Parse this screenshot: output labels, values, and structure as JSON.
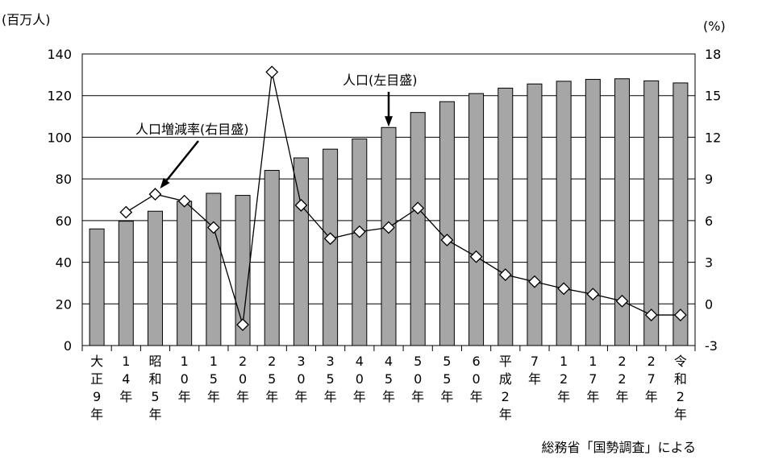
{
  "chart_data": {
    "type": "bar",
    "categories": [
      "大正9年",
      "14年",
      "昭和5年",
      "10年",
      "15年",
      "20年",
      "25年",
      "30年",
      "35年",
      "40年",
      "45年",
      "50年",
      "55年",
      "60年",
      "平成2年",
      "7年",
      "12年",
      "17年",
      "22年",
      "27年",
      "令和2年"
    ],
    "series": [
      {
        "name": "人口(左目盛)",
        "kind": "bar",
        "axis": "left",
        "color": "#a6a6a6",
        "values": [
          56.0,
          59.7,
          64.5,
          69.3,
          73.1,
          72.1,
          84.1,
          90.1,
          94.3,
          99.2,
          104.7,
          111.9,
          117.1,
          121.0,
          123.6,
          125.6,
          126.9,
          127.8,
          128.1,
          127.1,
          126.1
        ]
      },
      {
        "name": "人口増減率(右目盛)",
        "kind": "line",
        "axis": "right",
        "color": "#000000",
        "values": [
          null,
          6.6,
          7.9,
          7.4,
          5.5,
          -1.5,
          16.7,
          7.1,
          4.7,
          5.2,
          5.5,
          6.9,
          4.6,
          3.4,
          2.1,
          1.6,
          1.1,
          0.7,
          0.2,
          -0.8,
          -0.8
        ]
      }
    ],
    "y_left": {
      "unit_label": "(百万人)",
      "ylim": [
        0,
        140
      ],
      "ticks": [
        "0",
        "20",
        "40",
        "60",
        "80",
        "100",
        "120",
        "140"
      ]
    },
    "y_right": {
      "unit_label": "(%)",
      "ylim": [
        -3,
        18
      ],
      "ticks": [
        "-3",
        "0",
        "3",
        "6",
        "9",
        "12",
        "15",
        "18"
      ]
    },
    "annotations": [
      {
        "text": "人口(左目盛)",
        "target_series": 0,
        "target_index": 10
      },
      {
        "text": "人口増減率(右目盛)",
        "target_series": 1,
        "target_index": 2
      }
    ],
    "source": "総務省「国勢調査」による",
    "grid": true,
    "legend": "none"
  }
}
